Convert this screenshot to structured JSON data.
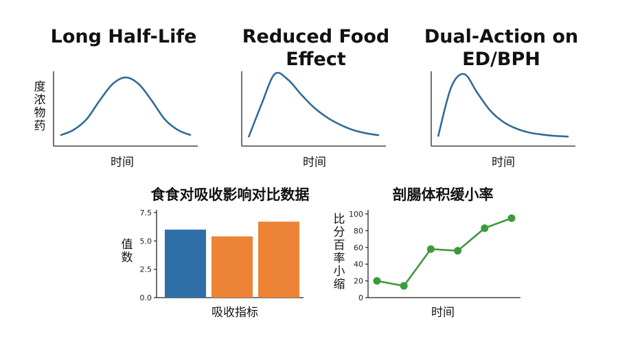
{
  "top_panels": [
    {
      "title_lines": [
        "Long Half-Life"
      ],
      "xlabel": "时间",
      "ylabel": "药物浓度"
    },
    {
      "title_lines": [
        "Reduced Food",
        "Effect"
      ],
      "xlabel": "时间"
    },
    {
      "title_lines": [
        "Dual-Action on",
        "ED/BPH"
      ],
      "xlabel": "时间"
    }
  ],
  "colors": {
    "curve": "#2f6c95",
    "blue": "#2f6fa7",
    "orange": "#ec8336",
    "green": "#3c9a3c"
  },
  "chart_data": [
    {
      "type": "line",
      "title": "Long Half-Life",
      "curve": "gaussian",
      "x": [
        0,
        1,
        2,
        3,
        4,
        5,
        6,
        7,
        8,
        9,
        10
      ],
      "values": [
        0.08,
        0.16,
        0.32,
        0.6,
        0.85,
        0.95,
        0.85,
        0.6,
        0.32,
        0.16,
        0.08
      ],
      "xlabel": "时间",
      "ylabel": "药物浓度"
    },
    {
      "type": "line",
      "title": "Reduced Food Effect",
      "x": [
        0,
        1,
        2,
        3,
        4,
        5,
        6,
        7,
        8,
        9,
        10
      ],
      "values": [
        0.05,
        0.55,
        1.0,
        0.92,
        0.7,
        0.5,
        0.35,
        0.24,
        0.16,
        0.11,
        0.08
      ],
      "xlabel": "时间"
    },
    {
      "type": "line",
      "title": "Dual-Action on ED/BPH",
      "x": [
        0,
        1,
        2,
        3,
        4,
        5,
        6,
        7,
        8,
        9,
        10
      ],
      "values": [
        0.06,
        0.8,
        1.0,
        0.72,
        0.45,
        0.28,
        0.18,
        0.12,
        0.09,
        0.07,
        0.06
      ],
      "xlabel": "时间"
    },
    {
      "type": "bar",
      "title": "食食对吸收影响对比数据",
      "categories": [
        "",
        "",
        ""
      ],
      "values": [
        6.0,
        5.4,
        6.7
      ],
      "bar_colors": [
        "blue",
        "orange",
        "orange"
      ],
      "xlabel": "吸收指标",
      "ylabel": "数值",
      "ylim": [
        0,
        7.5
      ],
      "yticks": [
        "0.0",
        "2.5",
        "5.0",
        "7.5"
      ]
    },
    {
      "type": "line",
      "title": "剖腸体积缓小率",
      "x": [
        1,
        2,
        3,
        4,
        5,
        6
      ],
      "values": [
        20,
        14,
        58,
        56,
        83,
        95
      ],
      "xlabel": "时间",
      "ylabel": "缩小率百分比",
      "ylim": [
        0,
        100
      ],
      "yticks": [
        "0",
        "20",
        "40",
        "60",
        "80",
        "100"
      ]
    }
  ]
}
